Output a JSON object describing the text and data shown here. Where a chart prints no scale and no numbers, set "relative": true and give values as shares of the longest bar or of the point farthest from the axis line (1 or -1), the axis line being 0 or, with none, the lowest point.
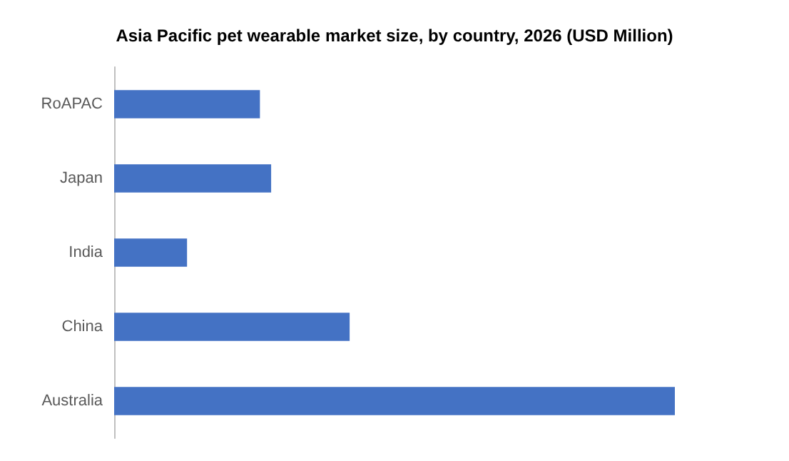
{
  "chart_data": {
    "type": "bar",
    "title": "Asia Pacific pet wearable market size, by country, 2026 (USD Million)",
    "orientation": "horizontal",
    "relative": true,
    "categories": [
      "RoAPAC",
      "Japan",
      "India",
      "China",
      "Australia"
    ],
    "values": [
      0.26,
      0.28,
      0.13,
      0.42,
      1
    ],
    "color": "#4472c4"
  }
}
